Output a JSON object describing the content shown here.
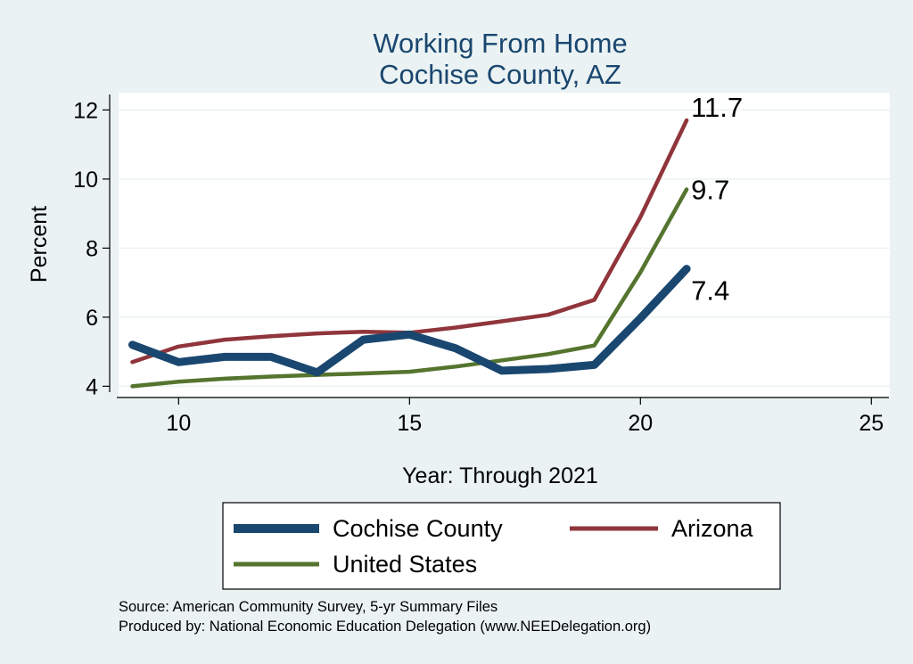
{
  "chart_data": {
    "type": "line",
    "title": [
      "Working From Home",
      "Cochise County, AZ"
    ],
    "xlabel": "Year: Through 2021",
    "ylabel": "Percent",
    "xlim": [
      8.7,
      25.4
    ],
    "ylim": [
      3.7,
      12.5
    ],
    "xticks": [
      10,
      15,
      20,
      25
    ],
    "yticks": [
      4,
      6,
      8,
      10,
      12
    ],
    "grid": "horizontal",
    "legend_position": "bottom",
    "x": [
      9,
      10,
      11,
      12,
      13,
      14,
      15,
      16,
      17,
      18,
      19,
      20,
      21
    ],
    "series": [
      {
        "name": "Cochise County",
        "color": "#1A476F",
        "width": 9,
        "values": [
          5.2,
          4.7,
          4.85,
          4.85,
          4.4,
          5.35,
          5.5,
          5.1,
          4.45,
          4.5,
          4.62,
          5.97,
          7.4
        ],
        "end_label": "7.4"
      },
      {
        "name": "Arizona",
        "color": "#90353B",
        "width": 4.5,
        "values": [
          4.7,
          5.15,
          5.35,
          5.45,
          5.53,
          5.58,
          5.55,
          5.7,
          5.88,
          6.07,
          6.5,
          8.9,
          11.7
        ],
        "end_label": "11.7"
      },
      {
        "name": "United States",
        "color": "#55752F",
        "width": 4.5,
        "values": [
          4.0,
          4.13,
          4.22,
          4.28,
          4.33,
          4.37,
          4.42,
          4.57,
          4.75,
          4.93,
          5.18,
          7.3,
          9.7
        ],
        "end_label": "9.7"
      }
    ]
  },
  "footnotes": [
    "Source: American Community Survey, 5-yr Summary Files",
    "Produced by: National Economic Education Delegation (www.NEEDelegation.org)"
  ]
}
